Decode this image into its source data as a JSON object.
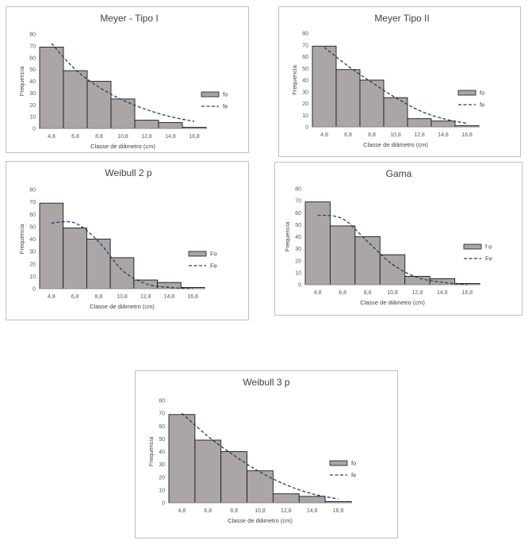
{
  "chart_data": [
    {
      "type": "bar",
      "title": "Meyer - Tipo I",
      "xlabel": "Classe de diâmetro (cm)",
      "ylabel": "Frequencia",
      "ylim": [
        0,
        80
      ],
      "yticks": [
        0,
        10,
        20,
        30,
        40,
        50,
        60,
        70,
        80
      ],
      "categories": [
        "4,8",
        "6,8",
        "8,8",
        "10,8",
        "12,8",
        "14,8",
        "16,8"
      ],
      "grid": false,
      "legend_position": "right",
      "series": [
        {
          "name": "fo",
          "kind": "bar",
          "values": [
            69,
            49,
            40,
            25,
            7,
            5,
            1
          ],
          "color": "#aba5a5"
        },
        {
          "name": "fe",
          "kind": "dashed-line",
          "values": [
            72,
            50,
            35,
            24,
            16,
            10,
            6
          ],
          "color": "#1f3f73"
        }
      ]
    },
    {
      "type": "bar",
      "title": "Meyer Tipo II",
      "xlabel": "Classe de diâmetro (cm)",
      "ylabel": "Frequencia",
      "ylim": [
        0,
        80
      ],
      "yticks": [
        0,
        10,
        20,
        30,
        40,
        50,
        60,
        70,
        80
      ],
      "categories": [
        "4,8",
        "6,8",
        "8,8",
        "10,8",
        "12,8",
        "14,8",
        "16,8"
      ],
      "grid": false,
      "legend_position": "right",
      "series": [
        {
          "name": "fo",
          "kind": "bar",
          "values": [
            69,
            49,
            40,
            25,
            7,
            5,
            1
          ],
          "color": "#aba5a5"
        },
        {
          "name": "fe",
          "kind": "dashed-line",
          "values": [
            68,
            52,
            38,
            25,
            14,
            7,
            3
          ],
          "color": "#1f3f73"
        }
      ]
    },
    {
      "type": "bar",
      "title": "Weibull 2 p",
      "xlabel": "Classe de diâmetro (cm)",
      "ylabel": "Frequencia",
      "ylim": [
        0,
        80
      ],
      "yticks": [
        0,
        10,
        20,
        30,
        40,
        50,
        60,
        70,
        80
      ],
      "categories": [
        "4,8",
        "6,8",
        "8,8",
        "10,8",
        "12,8",
        "14,8",
        "16,8"
      ],
      "grid": false,
      "legend_position": "right",
      "series": [
        {
          "name": "Fo",
          "kind": "bar",
          "values": [
            69,
            49,
            40,
            25,
            7,
            5,
            1
          ],
          "color": "#aba5a5"
        },
        {
          "name": "Fe",
          "kind": "dashed-line",
          "values": [
            53,
            53,
            38,
            15,
            4,
            1,
            0
          ],
          "color": "#1f3f73"
        }
      ]
    },
    {
      "type": "bar",
      "title": "Gama",
      "xlabel": "Classe de diâmetro (cm)",
      "ylabel": "Frequencia",
      "ylim": [
        0,
        80
      ],
      "yticks": [
        0,
        10,
        20,
        30,
        40,
        50,
        60,
        70,
        80
      ],
      "categories": [
        "4,8",
        "6,8",
        "8,8",
        "10,8",
        "12,8",
        "14,8",
        "16,8"
      ],
      "grid": false,
      "legend_position": "right",
      "series": [
        {
          "name": "f o",
          "kind": "bar",
          "values": [
            69,
            49,
            40,
            25,
            7,
            5,
            1
          ],
          "color": "#aba5a5"
        },
        {
          "name": "Fe",
          "kind": "dashed-line",
          "values": [
            58,
            55,
            36,
            17,
            6,
            2,
            0
          ],
          "color": "#1f3f73"
        }
      ]
    },
    {
      "type": "bar",
      "title": "Weibull 3 p",
      "xlabel": "Classe de diâmetro (cm)",
      "ylabel": "Frequencia",
      "ylim": [
        0,
        80
      ],
      "yticks": [
        0,
        10,
        20,
        30,
        40,
        50,
        60,
        70,
        80
      ],
      "categories": [
        "4,8",
        "6,8",
        "8,8",
        "10,8",
        "12,8",
        "14,8",
        "16,8"
      ],
      "grid": false,
      "legend_position": "right",
      "series": [
        {
          "name": "fo",
          "kind": "bar",
          "values": [
            69,
            49,
            40,
            25,
            7,
            5,
            1
          ],
          "color": "#aba5a5"
        },
        {
          "name": "fe",
          "kind": "dashed-line",
          "values": [
            70,
            52,
            37,
            24,
            14,
            7,
            3
          ],
          "color": "#1f3f73"
        }
      ]
    }
  ]
}
